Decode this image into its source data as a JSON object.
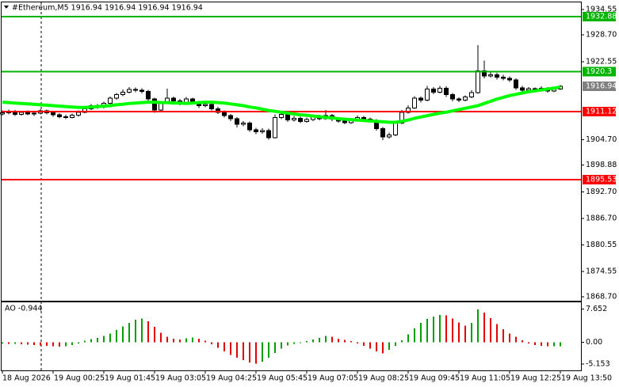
{
  "chart_data": [
    {
      "type": "candlestick",
      "title": "#Ethereum,M5  1916.94 1916.94 1916.94 1916.94",
      "categories": [
        "18 Aug 2026",
        null,
        null,
        null,
        null,
        null,
        null,
        null,
        "19 Aug 00:25",
        null,
        null,
        null,
        null,
        null,
        null,
        null,
        "19 Aug 01:45",
        null,
        null,
        null,
        null,
        null,
        null,
        null,
        "19 Aug 03:05",
        null,
        null,
        null,
        null,
        null,
        null,
        null,
        "19 Aug 04:25",
        null,
        null,
        null,
        null,
        null,
        null,
        null,
        "19 Aug 05:45",
        null,
        null,
        null,
        null,
        null,
        null,
        null,
        "19 Aug 07:05",
        null,
        null,
        null,
        null,
        null,
        null,
        null,
        "19 Aug 08:25",
        null,
        null,
        null,
        null,
        null,
        null,
        null,
        "19 Aug 09:45",
        null,
        null,
        null,
        null,
        null,
        null,
        null,
        "19 Aug 11:05",
        null,
        null,
        null,
        null,
        null,
        null,
        null,
        "19 Aug 12:25",
        null,
        null,
        null,
        null,
        null,
        null,
        null,
        "19 Aug 13:50"
      ],
      "open": [
        1910.6,
        1910.9,
        1911.2,
        1910.5,
        1911.0,
        1910.6,
        1910.8,
        1911.3,
        1910.9,
        1910.4,
        1910.0,
        1909.8,
        1910.3,
        1911.0,
        1911.8,
        1912.5,
        1912.2,
        1913.0,
        1914.2,
        1915.0,
        1915.6,
        1916.2,
        1916.0,
        1915.8,
        1914.0,
        1911.5,
        1913.2,
        1914.2,
        1913.6,
        1913.0,
        1914.0,
        1913.2,
        1912.5,
        1912.8,
        1911.8,
        1911.0,
        1910.2,
        1909.5,
        1908.2,
        1908.5,
        1907.0,
        1906.5,
        1906.8,
        1905.2,
        1909.8,
        1910.5,
        1909.2,
        1909.6,
        1908.9,
        1909.3,
        1910.0,
        1909.5,
        1910.2,
        1909.4,
        1909.0,
        1908.6,
        1909.2,
        1909.8,
        1909.4,
        1909.1,
        1907.2,
        1905.3,
        1905.8,
        1908.5,
        1911.0,
        1912.0,
        1914.2,
        1913.8,
        1916.3,
        1915.6,
        1916.5,
        1915.0,
        1914.0,
        1913.8,
        1914.5,
        1915.5,
        1920.5,
        1919.3,
        1919.6,
        1919.0,
        1918.8,
        1918.4,
        1916.6,
        1916.0,
        1916.4,
        1916.2,
        1916.5,
        1915.9,
        1916.3
      ],
      "high": [
        1911.4,
        1911.6,
        1911.5,
        1911.3,
        1911.4,
        1911.2,
        1911.7,
        1911.6,
        1911.2,
        1910.8,
        1910.4,
        1910.7,
        1911.4,
        1912.2,
        1912.9,
        1912.9,
        1913.4,
        1914.6,
        1915.4,
        1916.2,
        1916.8,
        1916.7,
        1916.5,
        1916.1,
        1914.3,
        1913.6,
        1916.4,
        1914.6,
        1914.0,
        1914.5,
        1914.3,
        1913.6,
        1913.3,
        1913.1,
        1912.2,
        1911.4,
        1910.6,
        1909.9,
        1909.0,
        1908.9,
        1907.4,
        1907.3,
        1907.2,
        1910.5,
        1911.0,
        1910.9,
        1910.1,
        1910.0,
        1909.8,
        1910.5,
        1910.4,
        1911.5,
        1910.6,
        1909.8,
        1909.4,
        1909.6,
        1910.2,
        1910.1,
        1909.8,
        1909.4,
        1907.6,
        1906.3,
        1909.0,
        1911.5,
        1912.6,
        1914.7,
        1914.6,
        1917.0,
        1916.8,
        1917.0,
        1916.9,
        1915.4,
        1914.4,
        1914.9,
        1916.0,
        1926.4,
        1922.8,
        1920.5,
        1920.0,
        1919.6,
        1919.2,
        1918.8,
        1917.0,
        1916.8,
        1916.7,
        1916.9,
        1916.8,
        1916.6,
        1917.2
      ],
      "low": [
        1910.2,
        1910.5,
        1910.1,
        1910.2,
        1910.3,
        1910.1,
        1910.5,
        1910.5,
        1910.0,
        1909.6,
        1909.4,
        1909.6,
        1910.0,
        1910.8,
        1911.5,
        1911.8,
        1911.9,
        1912.8,
        1913.9,
        1914.7,
        1915.3,
        1915.6,
        1915.3,
        1913.6,
        1910.9,
        1911.2,
        1912.9,
        1913.2,
        1912.6,
        1912.8,
        1912.8,
        1912.0,
        1912.1,
        1911.4,
        1910.6,
        1909.8,
        1909.0,
        1907.5,
        1907.8,
        1906.5,
        1906.0,
        1906.1,
        1904.7,
        1905.0,
        1909.4,
        1908.8,
        1908.9,
        1908.5,
        1908.6,
        1909.0,
        1909.1,
        1909.2,
        1909.0,
        1908.6,
        1908.2,
        1908.3,
        1908.9,
        1909.0,
        1908.7,
        1906.8,
        1904.6,
        1905.0,
        1905.5,
        1908.2,
        1910.7,
        1911.8,
        1913.2,
        1913.5,
        1915.1,
        1915.3,
        1914.5,
        1913.5,
        1913.3,
        1913.5,
        1914.2,
        1915.2,
        1918.8,
        1918.9,
        1918.5,
        1918.3,
        1917.9,
        1916.1,
        1915.6,
        1915.7,
        1915.8,
        1915.9,
        1915.5,
        1915.6,
        1916.1
      ],
      "close": [
        1910.9,
        1911.2,
        1910.5,
        1911.0,
        1910.6,
        1910.8,
        1911.3,
        1910.9,
        1910.4,
        1910.0,
        1909.8,
        1910.3,
        1911.0,
        1911.8,
        1912.5,
        1912.2,
        1913.0,
        1914.2,
        1915.0,
        1915.6,
        1916.2,
        1916.0,
        1915.8,
        1914.0,
        1911.5,
        1913.2,
        1914.2,
        1913.6,
        1913.0,
        1914.0,
        1913.2,
        1912.5,
        1912.8,
        1911.8,
        1911.0,
        1910.2,
        1909.5,
        1908.2,
        1908.5,
        1907.0,
        1906.5,
        1906.8,
        1905.2,
        1909.8,
        1910.5,
        1909.2,
        1909.6,
        1908.9,
        1909.3,
        1910.0,
        1909.5,
        1910.2,
        1909.4,
        1909.0,
        1908.6,
        1909.2,
        1909.8,
        1909.4,
        1909.1,
        1907.2,
        1905.3,
        1905.8,
        1908.5,
        1911.0,
        1912.0,
        1914.2,
        1913.8,
        1916.3,
        1915.6,
        1916.5,
        1915.0,
        1914.0,
        1913.8,
        1914.5,
        1915.5,
        1920.5,
        1919.3,
        1919.6,
        1919.0,
        1918.8,
        1918.4,
        1916.6,
        1916.0,
        1916.4,
        1916.2,
        1916.5,
        1915.9,
        1916.3,
        1916.94
      ],
      "up_color": "#ffffff",
      "down_color": "#000000",
      "wick_color": "#000000",
      "ma_color": "#00ff00",
      "ma_values": [
        1913.3,
        1913.2,
        1913.1,
        1913.0,
        1912.9,
        1912.8,
        1912.7,
        1912.6,
        1912.5,
        1912.4,
        1912.3,
        1912.2,
        1912.1,
        1912.1,
        1912.2,
        1912.3,
        1912.4,
        1912.5,
        1912.7,
        1912.8,
        1913.0,
        1913.1,
        1913.2,
        1913.3,
        1913.3,
        1913.2,
        1913.2,
        1913.1,
        1913.1,
        1913.0,
        1913.1,
        1913.2,
        1913.3,
        1913.3,
        1913.2,
        1913.1,
        1912.9,
        1912.7,
        1912.5,
        1912.2,
        1912.0,
        1911.7,
        1911.4,
        1911.2,
        1911.0,
        1910.8,
        1910.6,
        1910.4,
        1910.3,
        1910.1,
        1910.0,
        1909.8,
        1909.7,
        1909.5,
        1909.4,
        1909.3,
        1909.2,
        1909.1,
        1909.0,
        1908.9,
        1908.8,
        1908.7,
        1908.7,
        1908.9,
        1909.2,
        1909.6,
        1909.9,
        1910.2,
        1910.5,
        1910.8,
        1911.0,
        1911.3,
        1911.6,
        1911.9,
        1912.2,
        1912.5,
        1913.0,
        1913.5,
        1914.0,
        1914.4,
        1914.8,
        1915.1,
        1915.4,
        1915.7,
        1915.9,
        1916.1,
        1916.3,
        1916.5,
        1916.8
      ],
      "levels": [
        {
          "value": 1932.88,
          "color": "#00b400"
        },
        {
          "value": 1920.3,
          "color": "#00b400"
        },
        {
          "value": 1911.12,
          "color": "#ff0000"
        },
        {
          "value": 1895.53,
          "color": "#ff0000"
        }
      ],
      "current_price": 1916.94,
      "current_color": "#808080",
      "ylim": [
        1868.16,
        1936.71
      ],
      "yticks": [
        1934.55,
        {
          "value": 1928.7,
          "label": "1928.70"
        },
        1922.55,
        {
          "value": 1904.7,
          "label": "1904.70"
        },
        1898.88,
        {
          "value": 1892.7,
          "label": "1892.70"
        },
        {
          "value": 1886.7,
          "label": "1886.70"
        },
        1880.55,
        1874.55,
        {
          "value": 1868.7,
          "label": "1868.70"
        }
      ]
    },
    {
      "type": "histogram-oscillator",
      "title": "AO -0.944",
      "values": [
        -0.3,
        -0.4,
        -0.4,
        -0.5,
        -0.6,
        -0.7,
        -0.8,
        -0.9,
        -1.0,
        -1.1,
        -1.0,
        -0.7,
        -0.3,
        0.3,
        0.7,
        1.0,
        1.4,
        2.0,
        2.8,
        3.6,
        4.5,
        5.2,
        5.5,
        4.8,
        3.5,
        2.2,
        1.2,
        0.8,
        0.6,
        0.9,
        1.1,
        0.8,
        0.3,
        -0.5,
        -1.3,
        -2.2,
        -3.0,
        -3.6,
        -4.2,
        -4.7,
        -5.0,
        -4.6,
        -3.6,
        -2.5,
        -1.5,
        -0.8,
        -0.4,
        -0.2,
        0.2,
        0.6,
        1.0,
        1.4,
        1.2,
        0.8,
        0.5,
        0.2,
        -0.3,
        -0.9,
        -1.5,
        -2.2,
        -2.6,
        -1.8,
        -0.9,
        0.4,
        1.8,
        3.2,
        4.5,
        5.4,
        5.9,
        6.3,
        6.2,
        5.5,
        4.6,
        3.8,
        4.5,
        7.6,
        6.9,
        5.6,
        4.2,
        3.0,
        2.0,
        1.2,
        0.4,
        -0.3,
        -0.7,
        -0.9,
        -1.0,
        -0.95,
        -0.944
      ],
      "up_color": "#00a000",
      "down_color": "#e00000",
      "ylim": [
        -6.58,
        9.25
      ],
      "yticks": [
        7.652,
        {
          "value": 0,
          "label": "0.00"
        },
        -5.153
      ]
    }
  ]
}
